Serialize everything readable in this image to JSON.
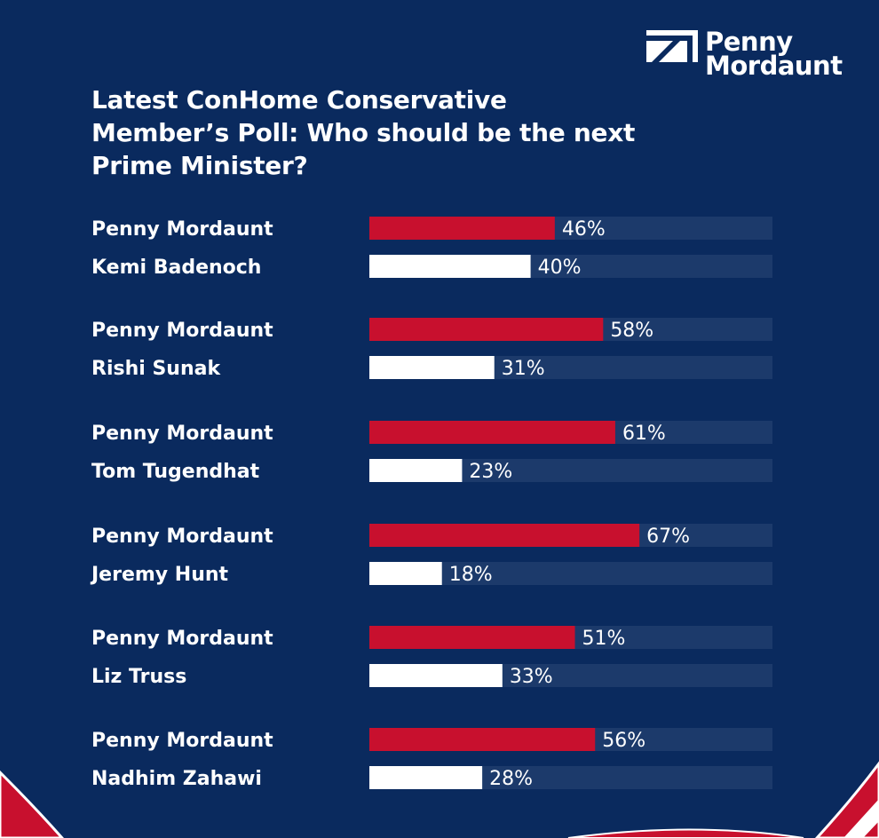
{
  "logo": {
    "line1": "Penny",
    "line2": "Mordaunt"
  },
  "colors": {
    "background": "#0a2a5e",
    "track": "#1c3a6b",
    "highlight": "#c8102e",
    "other": "#ffffff"
  },
  "chart_data": {
    "type": "bar",
    "orientation": "horizontal",
    "title": "Latest ConHome Conservative Member’s Poll: Who should be the next Prime Minister?",
    "xlim": [
      0,
      100
    ],
    "unit": "%",
    "groups": [
      {
        "rows": [
          {
            "name": "Penny Mordaunt",
            "value": 46,
            "label": "46%"
          },
          {
            "name": "Kemi Badenoch",
            "value": 40,
            "label": "40%"
          }
        ]
      },
      {
        "rows": [
          {
            "name": "Penny Mordaunt",
            "value": 58,
            "label": "58%"
          },
          {
            "name": "Rishi Sunak",
            "value": 31,
            "label": "31%"
          }
        ]
      },
      {
        "rows": [
          {
            "name": "Penny Mordaunt",
            "value": 61,
            "label": "61%"
          },
          {
            "name": "Tom Tugendhat",
            "value": 23,
            "label": "23%"
          }
        ]
      },
      {
        "rows": [
          {
            "name": "Penny Mordaunt",
            "value": 67,
            "label": "67%"
          },
          {
            "name": "Jeremy Hunt",
            "value": 18,
            "label": "18%"
          }
        ]
      },
      {
        "rows": [
          {
            "name": "Penny Mordaunt",
            "value": 51,
            "label": "51%"
          },
          {
            "name": "Liz Truss",
            "value": 33,
            "label": "33%"
          }
        ]
      },
      {
        "rows": [
          {
            "name": "Penny Mordaunt",
            "value": 56,
            "label": "56%"
          },
          {
            "name": "Nadhim Zahawi",
            "value": 28,
            "label": "28%"
          }
        ]
      }
    ]
  }
}
